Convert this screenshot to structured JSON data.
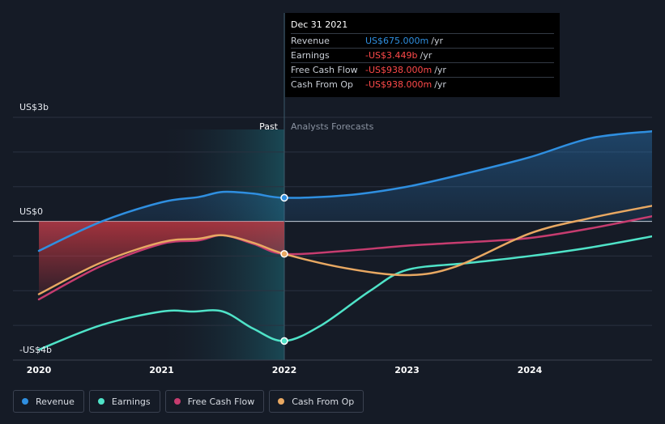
{
  "chart_data": {
    "type": "line",
    "y_unit_labels": [
      "US$3b",
      "US$0",
      "-US$4b"
    ],
    "ylim": [
      -4,
      3
    ],
    "xlim": [
      2020,
      2025
    ],
    "x_ticks": [
      "2020",
      "2021",
      "2022",
      "2023",
      "2024"
    ],
    "divider_x": 2022,
    "past_label": "Past",
    "forecast_label": "Analysts Forecasts",
    "series": [
      {
        "name": "Revenue",
        "color": "#2f8fe0",
        "points": [
          [
            2020,
            -0.85
          ],
          [
            2020.5,
            -0.02
          ],
          [
            2021,
            0.55
          ],
          [
            2021.3,
            0.7
          ],
          [
            2021.5,
            0.85
          ],
          [
            2021.75,
            0.8
          ],
          [
            2022,
            0.68
          ],
          [
            2022.5,
            0.75
          ],
          [
            2023,
            1.0
          ],
          [
            2023.5,
            1.4
          ],
          [
            2024,
            1.85
          ],
          [
            2024.5,
            2.4
          ],
          [
            2025,
            2.6
          ]
        ]
      },
      {
        "name": "Earnings",
        "color": "#4fe3c8",
        "points": [
          [
            2020,
            -3.7
          ],
          [
            2020.5,
            -3.0
          ],
          [
            2021,
            -2.6
          ],
          [
            2021.25,
            -2.6
          ],
          [
            2021.5,
            -2.6
          ],
          [
            2021.75,
            -3.1
          ],
          [
            2022,
            -3.449
          ],
          [
            2022.3,
            -3.0
          ],
          [
            2022.7,
            -2.0
          ],
          [
            2023,
            -1.4
          ],
          [
            2023.5,
            -1.2
          ],
          [
            2024,
            -1.0
          ],
          [
            2024.5,
            -0.75
          ],
          [
            2025,
            -0.43
          ]
        ]
      },
      {
        "name": "Free Cash Flow",
        "color": "#c63c6f",
        "points": [
          [
            2020,
            -2.25
          ],
          [
            2020.5,
            -1.3
          ],
          [
            2021,
            -0.65
          ],
          [
            2021.3,
            -0.55
          ],
          [
            2021.5,
            -0.4
          ],
          [
            2021.75,
            -0.65
          ],
          [
            2022,
            -0.938
          ],
          [
            2022.5,
            -0.85
          ],
          [
            2023,
            -0.7
          ],
          [
            2023.5,
            -0.6
          ],
          [
            2024,
            -0.48
          ],
          [
            2024.5,
            -0.2
          ],
          [
            2025,
            0.15
          ]
        ]
      },
      {
        "name": "Cash From Op",
        "color": "#e8a862",
        "points": [
          [
            2020,
            -2.1
          ],
          [
            2020.5,
            -1.2
          ],
          [
            2021,
            -0.6
          ],
          [
            2021.3,
            -0.5
          ],
          [
            2021.5,
            -0.4
          ],
          [
            2021.75,
            -0.62
          ],
          [
            2022,
            -0.938
          ],
          [
            2022.5,
            -1.35
          ],
          [
            2023,
            -1.55
          ],
          [
            2023.4,
            -1.3
          ],
          [
            2024,
            -0.35
          ],
          [
            2024.5,
            0.1
          ],
          [
            2025,
            0.45
          ]
        ]
      }
    ],
    "highlight_x": 2022,
    "highlight_values": {
      "Revenue": 0.68,
      "Earnings": -3.449,
      "Cash From Op": -0.938
    }
  },
  "tooltip": {
    "date": "Dec 31 2021",
    "rows": [
      {
        "label": "Revenue",
        "value": "US$675.000m",
        "unit": "/yr",
        "color": "#2f8fe0"
      },
      {
        "label": "Earnings",
        "value": "-US$3.449b",
        "unit": "/yr",
        "color": "#ff4a4a"
      },
      {
        "label": "Free Cash Flow",
        "value": "-US$938.000m",
        "unit": "/yr",
        "color": "#ff4a4a"
      },
      {
        "label": "Cash From Op",
        "value": "-US$938.000m",
        "unit": "/yr",
        "color": "#ff4a4a"
      }
    ]
  },
  "legend": [
    {
      "label": "Revenue",
      "color": "#2f8fe0"
    },
    {
      "label": "Earnings",
      "color": "#4fe3c8"
    },
    {
      "label": "Free Cash Flow",
      "color": "#c63c6f"
    },
    {
      "label": "Cash From Op",
      "color": "#e8a862"
    }
  ]
}
